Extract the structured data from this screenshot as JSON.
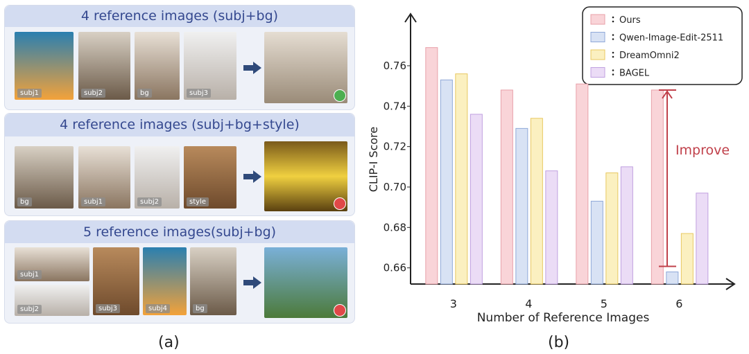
{
  "panel_a": {
    "label": "(a)",
    "rows": [
      {
        "title": "4  reference images (subj+bg)",
        "images": [
          "subj1",
          "subj2",
          "bg",
          "subj3"
        ]
      },
      {
        "title": "4  reference images (subj+bg+style)",
        "images": [
          "bg",
          "subj1",
          "subj2",
          "style"
        ]
      },
      {
        "title": "5  reference images(subj+bg)",
        "images": [
          "subj1",
          "subj2",
          "subj3",
          "subj4",
          "bg"
        ]
      }
    ]
  },
  "chart_data": {
    "type": "bar",
    "label": "(b)",
    "xlabel": "Number of Reference Images",
    "ylabel": "CLIP-I  Score",
    "categories": [
      "3",
      "4",
      "5",
      "6"
    ],
    "series": [
      {
        "name": "Ours",
        "color": "#f9d4d8",
        "values": [
          0.769,
          0.748,
          0.751,
          0.748
        ]
      },
      {
        "name": "Qwen-Image-Edit-2511",
        "color": "#d8e2f4",
        "values": [
          0.753,
          0.729,
          0.693,
          0.658
        ]
      },
      {
        "name": "DreamOmni2",
        "color": "#fbf0c0",
        "values": [
          0.756,
          0.734,
          0.707,
          0.677
        ]
      },
      {
        "name": "BAGEL",
        "color": "#ebdcf6",
        "values": [
          0.736,
          0.708,
          0.71,
          0.697
        ]
      }
    ],
    "ylim": [
      0.652,
      0.785
    ],
    "yticks": [
      0.66,
      0.68,
      {
        "value": 0.7,
        "label": "0.70"
      },
      0.72,
      0.74,
      0.76
    ],
    "legend": "upper right",
    "annotation": "Improve"
  }
}
